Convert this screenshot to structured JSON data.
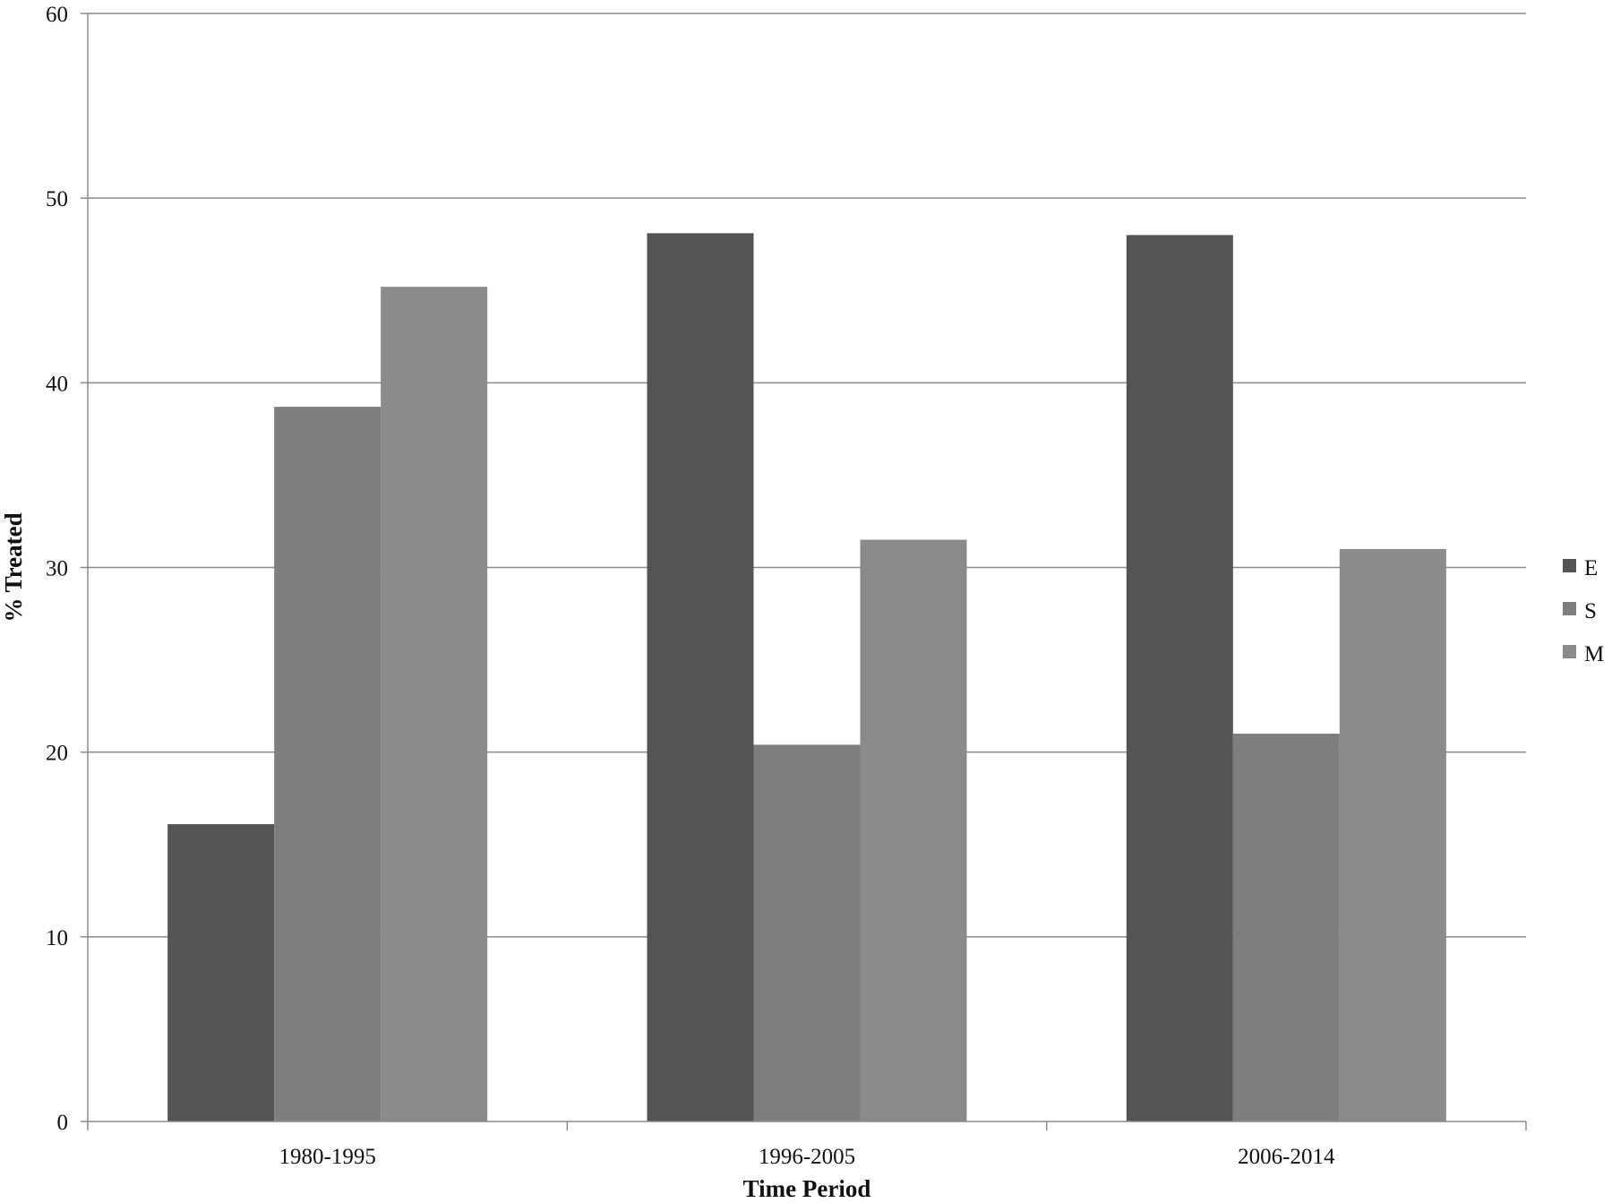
{
  "chart_data": {
    "type": "bar",
    "title": "",
    "xlabel": "Time Period",
    "ylabel": "% Treated",
    "categories": [
      "1980-1995",
      "1996-2005",
      "2006-2014"
    ],
    "series": [
      {
        "name": "E",
        "values": [
          16.1,
          48.1,
          48.0
        ],
        "color": "#545454"
      },
      {
        "name": "S",
        "values": [
          38.7,
          20.4,
          21.0
        ],
        "color": "#7e7e7e"
      },
      {
        "name": "M",
        "values": [
          45.2,
          31.5,
          31.0
        ],
        "color": "#8b8b8b"
      }
    ],
    "ylim": [
      0,
      60
    ],
    "yticks": [
      0,
      10,
      20,
      30,
      40,
      50,
      60
    ],
    "grid": true,
    "legend_position": "right"
  }
}
